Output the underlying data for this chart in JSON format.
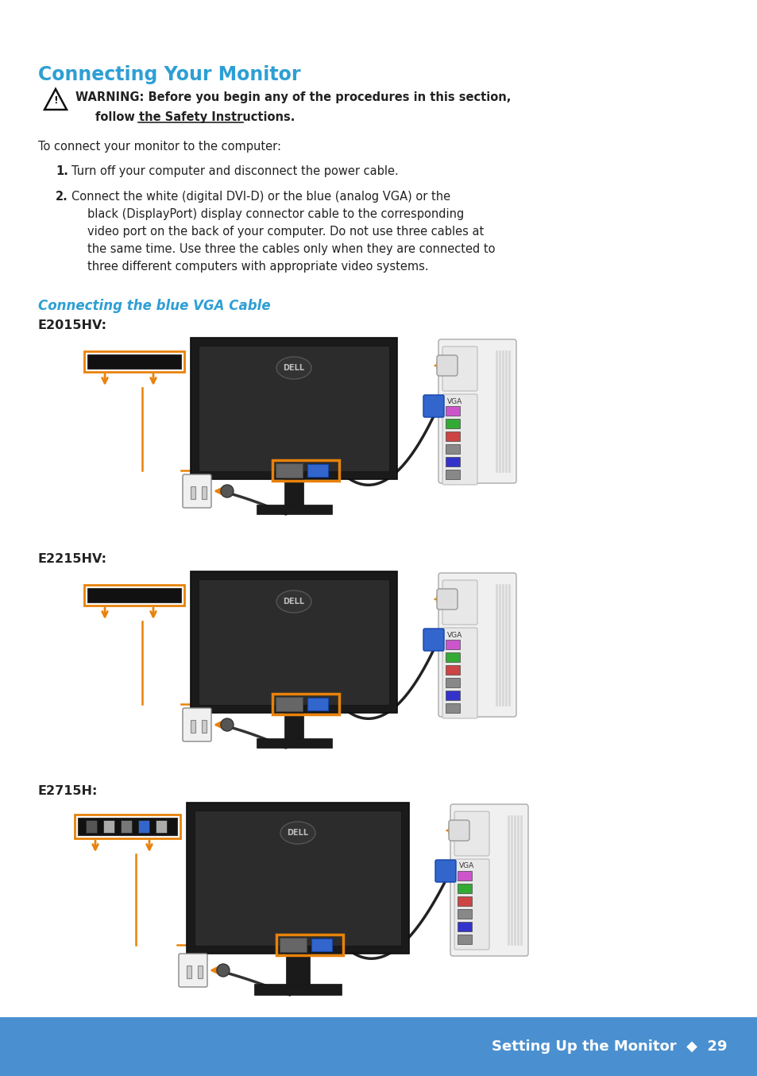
{
  "bg_color": "#ffffff",
  "footer_color": "#4a90d0",
  "footer_text": "Setting Up the Monitor  ◆  29",
  "footer_text_color": "#ffffff",
  "title": "Connecting Your Monitor",
  "title_color": "#2e9fd4",
  "warning_line1": "WARNING: Before you begin any of the procedures in this section,",
  "warning_line2": "follow the Safety Instructions.",
  "intro_text": "To connect your monitor to the computer:",
  "step1_num": "1.",
  "step1": "Turn off your computer and disconnect the power cable.",
  "step2_num": "2.",
  "step2_lines": [
    "Connect the white (digital DVI-D) or the blue (analog VGA) or the",
    "black (DisplayPort) display connector cable to the corresponding",
    "video port on the back of your computer. Do not use three cables at",
    "the same time. Use three the cables only when they are connected to",
    "three different computers with appropriate video systems."
  ],
  "section_title": "Connecting the blue VGA Cable",
  "section_title_color": "#2e9fd4",
  "label_e2015hv": "E2015HV:",
  "label_e2215hv": "E2215HV:",
  "label_e2715h": "E2715H:",
  "dark_color": "#222222",
  "orange_color": "#e8820a",
  "blue_conn_color": "#3366cc",
  "monitor_dark": "#1a1a1a",
  "screen_color": "#2c2c2c",
  "tower_fill": "#f2f2f2",
  "outlet_fill": "#f0f0f0"
}
